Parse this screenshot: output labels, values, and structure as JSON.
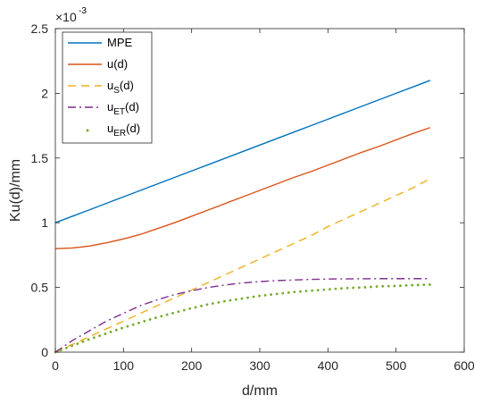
{
  "chart_data": {
    "type": "line",
    "title": "",
    "xlabel": "d/mm",
    "ylabel": "Ku(d)/mm",
    "y_exponent_label": "×10",
    "y_exponent": "-3",
    "xlim": [
      0,
      600
    ],
    "ylim": [
      0,
      2.5
    ],
    "xticks": [
      "0",
      "100",
      "200",
      "300",
      "400",
      "500",
      "600"
    ],
    "yticks": [
      "0",
      "0.5",
      "1",
      "1.5",
      "2",
      "2.5"
    ],
    "grid": false,
    "legend_position": "top-left",
    "x": [
      0,
      25,
      50,
      75,
      100,
      125,
      150,
      175,
      200,
      225,
      250,
      275,
      300,
      325,
      350,
      375,
      400,
      425,
      450,
      475,
      500,
      525,
      550
    ],
    "series": [
      {
        "name": "MPE",
        "name_sub": "",
        "name_suffix": "",
        "style": "solid",
        "color": "#0072BD",
        "values": [
          1.0,
          1.05,
          1.1,
          1.15,
          1.2,
          1.25,
          1.3,
          1.35,
          1.4,
          1.45,
          1.5,
          1.55,
          1.6,
          1.65,
          1.7,
          1.75,
          1.8,
          1.85,
          1.9,
          1.95,
          2.0,
          2.05,
          2.1
        ]
      },
      {
        "name": "u(d)",
        "name_sub": "",
        "name_suffix": "",
        "style": "solid",
        "color": "#D95319",
        "values": [
          0.8,
          0.805,
          0.82,
          0.845,
          0.875,
          0.91,
          0.955,
          1.0,
          1.05,
          1.1,
          1.15,
          1.2,
          1.25,
          1.3,
          1.35,
          1.395,
          1.445,
          1.495,
          1.545,
          1.59,
          1.64,
          1.69,
          1.735
        ]
      },
      {
        "name": "u",
        "name_sub": "S",
        "name_suffix": "(d)",
        "style": "dashed",
        "color": "#EDB120",
        "values": [
          0.0,
          0.06,
          0.12,
          0.18,
          0.24,
          0.3,
          0.36,
          0.42,
          0.48,
          0.54,
          0.6,
          0.66,
          0.72,
          0.78,
          0.84,
          0.9,
          0.97,
          1.03,
          1.09,
          1.15,
          1.21,
          1.27,
          1.34
        ]
      },
      {
        "name": "u",
        "name_sub": "ET",
        "name_suffix": "(d)",
        "style": "dashdot",
        "color": "#7E2F8E",
        "values": [
          0.0,
          0.09,
          0.165,
          0.24,
          0.3,
          0.36,
          0.405,
          0.445,
          0.475,
          0.5,
          0.52,
          0.535,
          0.545,
          0.553,
          0.558,
          0.562,
          0.565,
          0.566,
          0.567,
          0.568,
          0.568,
          0.568,
          0.568
        ]
      },
      {
        "name": "u",
        "name_sub": "ER",
        "name_suffix": "(d)",
        "style": "dotted",
        "color": "#77AC30",
        "values": [
          0.0,
          0.05,
          0.1,
          0.145,
          0.19,
          0.23,
          0.27,
          0.305,
          0.34,
          0.37,
          0.395,
          0.415,
          0.435,
          0.45,
          0.465,
          0.475,
          0.485,
          0.495,
          0.5,
          0.508,
          0.512,
          0.518,
          0.522
        ]
      }
    ]
  }
}
